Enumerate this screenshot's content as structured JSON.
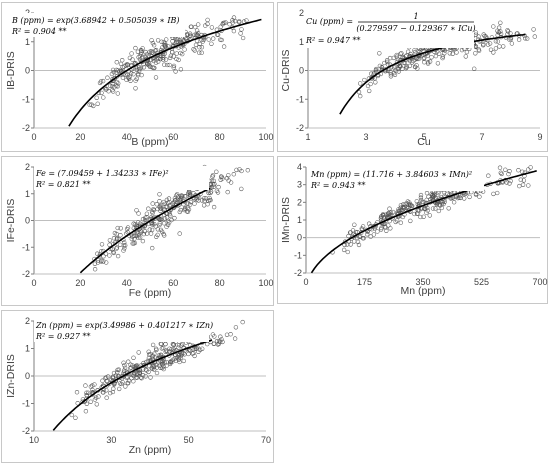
{
  "chart_data": [
    {
      "type": "scatter",
      "xlabel": "B (ppm)",
      "ylabel": "IB-DRIS",
      "xlim": [
        0,
        100
      ],
      "ylim": [
        -2,
        2
      ],
      "xticks": [
        0,
        20,
        40,
        60,
        80,
        100
      ],
      "yticks": [
        -2,
        -1,
        0,
        1,
        2
      ],
      "equation": [
        "B (ppm) = exp(3.68942 + 0.505039 ∗ IB)",
        "R² = 0.904 **"
      ],
      "fit": {
        "kind": "exp",
        "a": 3.68942,
        "b": 0.505039,
        "xrange": [
          14,
          98
        ]
      },
      "noise": 0.28,
      "points": 300,
      "xdist": [
        16,
        95,
        0.55
      ],
      "series": [
        {
          "marker": "circle-open",
          "values": []
        },
        {
          "marker": "line",
          "values": []
        }
      ]
    },
    {
      "type": "scatter",
      "xlabel": "Cu",
      "ylabel": "Cu-DRIS",
      "xlim": [
        1,
        9
      ],
      "ylim": [
        -2,
        2
      ],
      "xticks": [
        1,
        3,
        5,
        7,
        9
      ],
      "yticks": [
        -2,
        -1,
        0,
        1,
        2
      ],
      "equation": [
        "Cu (ppm) =",
        "1",
        "(0.279597 − 0.129367 ∗ ICu)",
        "R² = 0.947 **"
      ],
      "fit": {
        "kind": "recip",
        "a": 0.279597,
        "b": 0.129367,
        "xrange": [
          2.1,
          8.5
        ]
      },
      "noise": 0.22,
      "points": 300,
      "xdist": [
        2.0,
        9.0,
        0.5
      ],
      "series": [
        {
          "marker": "circle-open",
          "values": []
        },
        {
          "marker": "line",
          "values": []
        }
      ]
    },
    {
      "type": "scatter",
      "xlabel": "Fe (ppm)",
      "ylabel": "IFe-DRIS",
      "xlim": [
        0,
        100
      ],
      "ylim": [
        -2,
        2
      ],
      "xticks": [
        0,
        20,
        40,
        60,
        80,
        100
      ],
      "yticks": [
        -2,
        -1,
        0,
        1,
        2
      ],
      "equation": [
        "Fe = (7.09459 + 1.34233 ∗ IFe)²",
        "R² = 0.821 **"
      ],
      "fit": {
        "kind": "sqrt",
        "a": 7.09459,
        "b": 1.34233,
        "xrange": [
          20,
          76
        ]
      },
      "noise": 0.3,
      "points": 300,
      "xdist": [
        18,
        98,
        0.6
      ],
      "series": [
        {
          "marker": "circle-open",
          "values": []
        },
        {
          "marker": "line",
          "values": []
        }
      ]
    },
    {
      "type": "scatter",
      "xlabel": "Mn (ppm)",
      "ylabel": "IMn-DRIS",
      "xlim": [
        0,
        700
      ],
      "ylim": [
        -2,
        4
      ],
      "xticks": [
        0,
        175,
        350,
        525,
        700
      ],
      "yticks": [
        -2,
        -1,
        0,
        1,
        2,
        3,
        4
      ],
      "equation": [
        "Mn (ppm) = (11.716 + 3.84603 ∗ IMn)²",
        "R² = 0.943 **"
      ],
      "fit": {
        "kind": "sqrt",
        "a": 11.716,
        "b": 3.84603,
        "xrange": [
          8,
          690
        ]
      },
      "noise": 0.3,
      "points": 300,
      "xdist": [
        10,
        695,
        0.6
      ],
      "series": [
        {
          "marker": "circle-open",
          "values": []
        },
        {
          "marker": "line",
          "values": []
        }
      ]
    },
    {
      "type": "scatter",
      "xlabel": "Zn (ppm)",
      "ylabel": "IZn-DRIS",
      "xlim": [
        10,
        70
      ],
      "ylim": [
        -2,
        2
      ],
      "xticks": [
        10,
        30,
        50,
        70
      ],
      "yticks": [
        -2,
        -1,
        0,
        1,
        2
      ],
      "equation": [
        "Zn (ppm) = exp(3.49986 + 0.401217 ∗ IZn)",
        "R² = 0.927 **"
      ],
      "fit": {
        "kind": "exp",
        "a": 3.49986,
        "b": 0.401217,
        "xrange": [
          15,
          56
        ]
      },
      "noise": 0.25,
      "points": 300,
      "xdist": [
        14,
        66,
        0.55
      ],
      "series": [
        {
          "marker": "circle-open",
          "values": []
        },
        {
          "marker": "line",
          "values": []
        }
      ]
    }
  ]
}
